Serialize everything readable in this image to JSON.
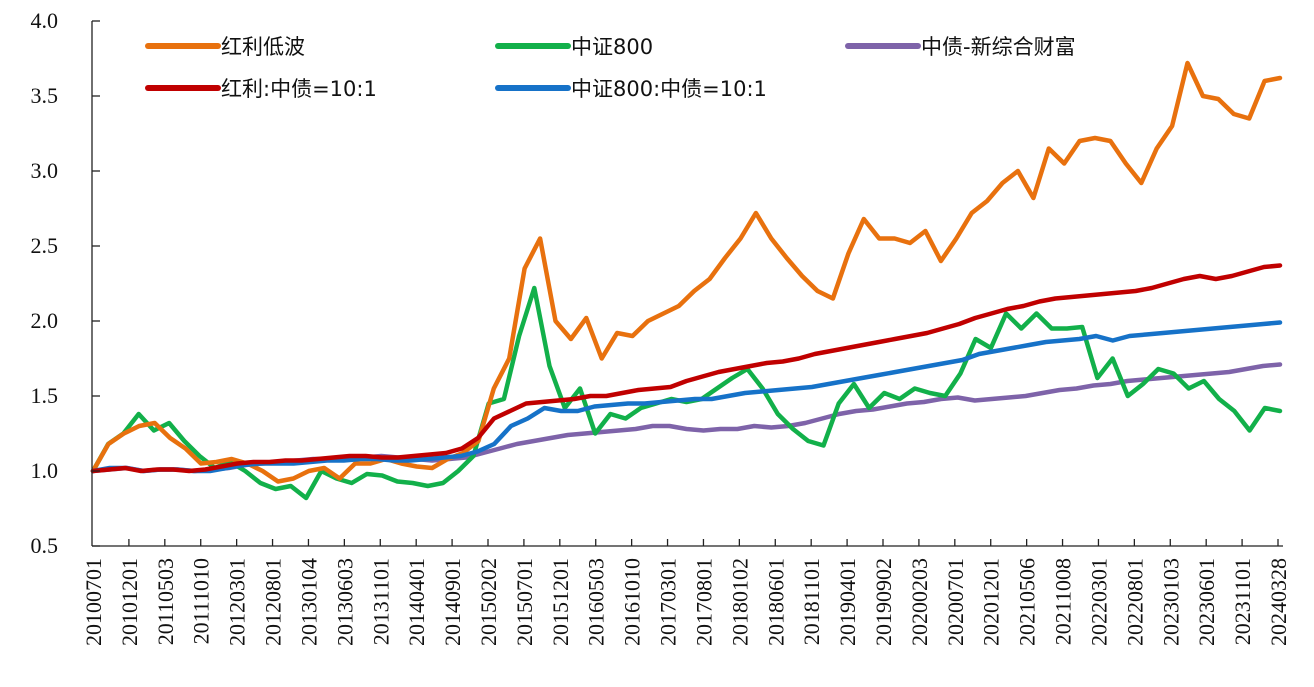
{
  "chart_data": {
    "type": "line",
    "title": "",
    "xlabel": "",
    "ylabel": "",
    "ylim": [
      0.5,
      4.0
    ],
    "yticks": [
      "0.5",
      "1.0",
      "1.5",
      "2.0",
      "2.5",
      "3.0",
      "3.5",
      "4.0"
    ],
    "grid": false,
    "legend_position": "top-left",
    "x_tick_labels": [
      "20100701",
      "20101201",
      "20110503",
      "20111010",
      "20120301",
      "20120801",
      "20130104",
      "20130603",
      "20131101",
      "20140401",
      "20140901",
      "20150202",
      "20150701",
      "20151201",
      "20160503",
      "20161010",
      "20170301",
      "20170801",
      "20180102",
      "20180601",
      "20181101",
      "20190401",
      "20190902",
      "20200203",
      "20200701",
      "20201201",
      "20210506",
      "20211008",
      "20220301",
      "20220801",
      "20230103",
      "20230601",
      "20231101",
      "20240328"
    ],
    "series": [
      {
        "name": "红利低波",
        "color": "#E8710E",
        "values": [
          1.0,
          1.18,
          1.25,
          1.3,
          1.32,
          1.22,
          1.15,
          1.05,
          1.06,
          1.08,
          1.05,
          1.0,
          0.93,
          0.95,
          1.0,
          1.02,
          0.95,
          1.05,
          1.05,
          1.08,
          1.05,
          1.03,
          1.02,
          1.08,
          1.12,
          1.2,
          1.55,
          1.75,
          2.35,
          2.55,
          2.0,
          1.88,
          2.02,
          1.75,
          1.92,
          1.9,
          2.0,
          2.05,
          2.1,
          2.2,
          2.28,
          2.42,
          2.55,
          2.72,
          2.55,
          2.42,
          2.3,
          2.2,
          2.15,
          2.45,
          2.68,
          2.55,
          2.55,
          2.52,
          2.6,
          2.4,
          2.55,
          2.72,
          2.8,
          2.92,
          3.0,
          2.82,
          3.15,
          3.05,
          3.2,
          3.22,
          3.2,
          3.05,
          2.92,
          3.15,
          3.3,
          3.72,
          3.5,
          3.48,
          3.38,
          3.35,
          3.6,
          3.62
        ]
      },
      {
        "name": "中证800",
        "color": "#12B04A",
        "values": [
          1.0,
          1.18,
          1.25,
          1.38,
          1.27,
          1.32,
          1.2,
          1.1,
          1.02,
          1.06,
          1.0,
          0.92,
          0.88,
          0.9,
          0.82,
          1.0,
          0.95,
          0.92,
          0.98,
          0.97,
          0.93,
          0.92,
          0.9,
          0.92,
          1.0,
          1.1,
          1.45,
          1.48,
          1.9,
          2.22,
          1.7,
          1.42,
          1.55,
          1.25,
          1.38,
          1.35,
          1.42,
          1.45,
          1.48,
          1.46,
          1.48,
          1.55,
          1.62,
          1.68,
          1.55,
          1.38,
          1.28,
          1.2,
          1.17,
          1.45,
          1.58,
          1.42,
          1.52,
          1.48,
          1.55,
          1.52,
          1.5,
          1.65,
          1.88,
          1.82,
          2.05,
          1.95,
          2.05,
          1.95,
          1.95,
          1.96,
          1.62,
          1.75,
          1.5,
          1.58,
          1.68,
          1.65,
          1.55,
          1.6,
          1.48,
          1.4,
          1.27,
          1.42,
          1.4
        ]
      },
      {
        "name": "中债-新综合财富",
        "color": "#7E63A9",
        "values": [
          1.0,
          1.01,
          1.02,
          1.0,
          1.01,
          1.01,
          1.0,
          1.01,
          1.02,
          1.04,
          1.05,
          1.06,
          1.07,
          1.08,
          1.08,
          1.08,
          1.09,
          1.1,
          1.09,
          1.08,
          1.07,
          1.08,
          1.09,
          1.12,
          1.15,
          1.18,
          1.2,
          1.22,
          1.24,
          1.25,
          1.26,
          1.27,
          1.28,
          1.3,
          1.3,
          1.28,
          1.27,
          1.28,
          1.28,
          1.3,
          1.29,
          1.3,
          1.32,
          1.35,
          1.38,
          1.4,
          1.41,
          1.43,
          1.45,
          1.46,
          1.48,
          1.49,
          1.47,
          1.48,
          1.49,
          1.5,
          1.52,
          1.54,
          1.55,
          1.57,
          1.58,
          1.6,
          1.61,
          1.62,
          1.63,
          1.64,
          1.65,
          1.66,
          1.68,
          1.7,
          1.71
        ]
      },
      {
        "name": "红利:中债=10:1",
        "color": "#C00000",
        "values": [
          1.0,
          1.01,
          1.02,
          1.0,
          1.01,
          1.01,
          1.0,
          1.01,
          1.03,
          1.05,
          1.06,
          1.06,
          1.07,
          1.07,
          1.08,
          1.09,
          1.1,
          1.1,
          1.09,
          1.09,
          1.1,
          1.11,
          1.12,
          1.15,
          1.22,
          1.35,
          1.4,
          1.45,
          1.46,
          1.47,
          1.48,
          1.5,
          1.5,
          1.52,
          1.54,
          1.55,
          1.56,
          1.6,
          1.63,
          1.66,
          1.68,
          1.7,
          1.72,
          1.73,
          1.75,
          1.78,
          1.8,
          1.82,
          1.84,
          1.86,
          1.88,
          1.9,
          1.92,
          1.95,
          1.98,
          2.02,
          2.05,
          2.08,
          2.1,
          2.13,
          2.15,
          2.16,
          2.17,
          2.18,
          2.19,
          2.2,
          2.22,
          2.25,
          2.28,
          2.3,
          2.28,
          2.3,
          2.33,
          2.36,
          2.37
        ]
      },
      {
        "name": "中证800:中债=10:1",
        "color": "#1672C8",
        "values": [
          1.0,
          1.02,
          1.02,
          1.0,
          1.01,
          1.01,
          1.0,
          1.0,
          1.02,
          1.04,
          1.05,
          1.05,
          1.05,
          1.06,
          1.07,
          1.07,
          1.08,
          1.08,
          1.07,
          1.07,
          1.08,
          1.09,
          1.1,
          1.13,
          1.18,
          1.3,
          1.35,
          1.42,
          1.4,
          1.4,
          1.43,
          1.44,
          1.45,
          1.45,
          1.46,
          1.47,
          1.48,
          1.48,
          1.5,
          1.52,
          1.53,
          1.54,
          1.55,
          1.56,
          1.58,
          1.6,
          1.62,
          1.64,
          1.66,
          1.68,
          1.7,
          1.72,
          1.74,
          1.78,
          1.8,
          1.82,
          1.84,
          1.86,
          1.87,
          1.88,
          1.9,
          1.87,
          1.9,
          1.91,
          1.92,
          1.93,
          1.94,
          1.95,
          1.96,
          1.97,
          1.98,
          1.99
        ]
      }
    ]
  }
}
